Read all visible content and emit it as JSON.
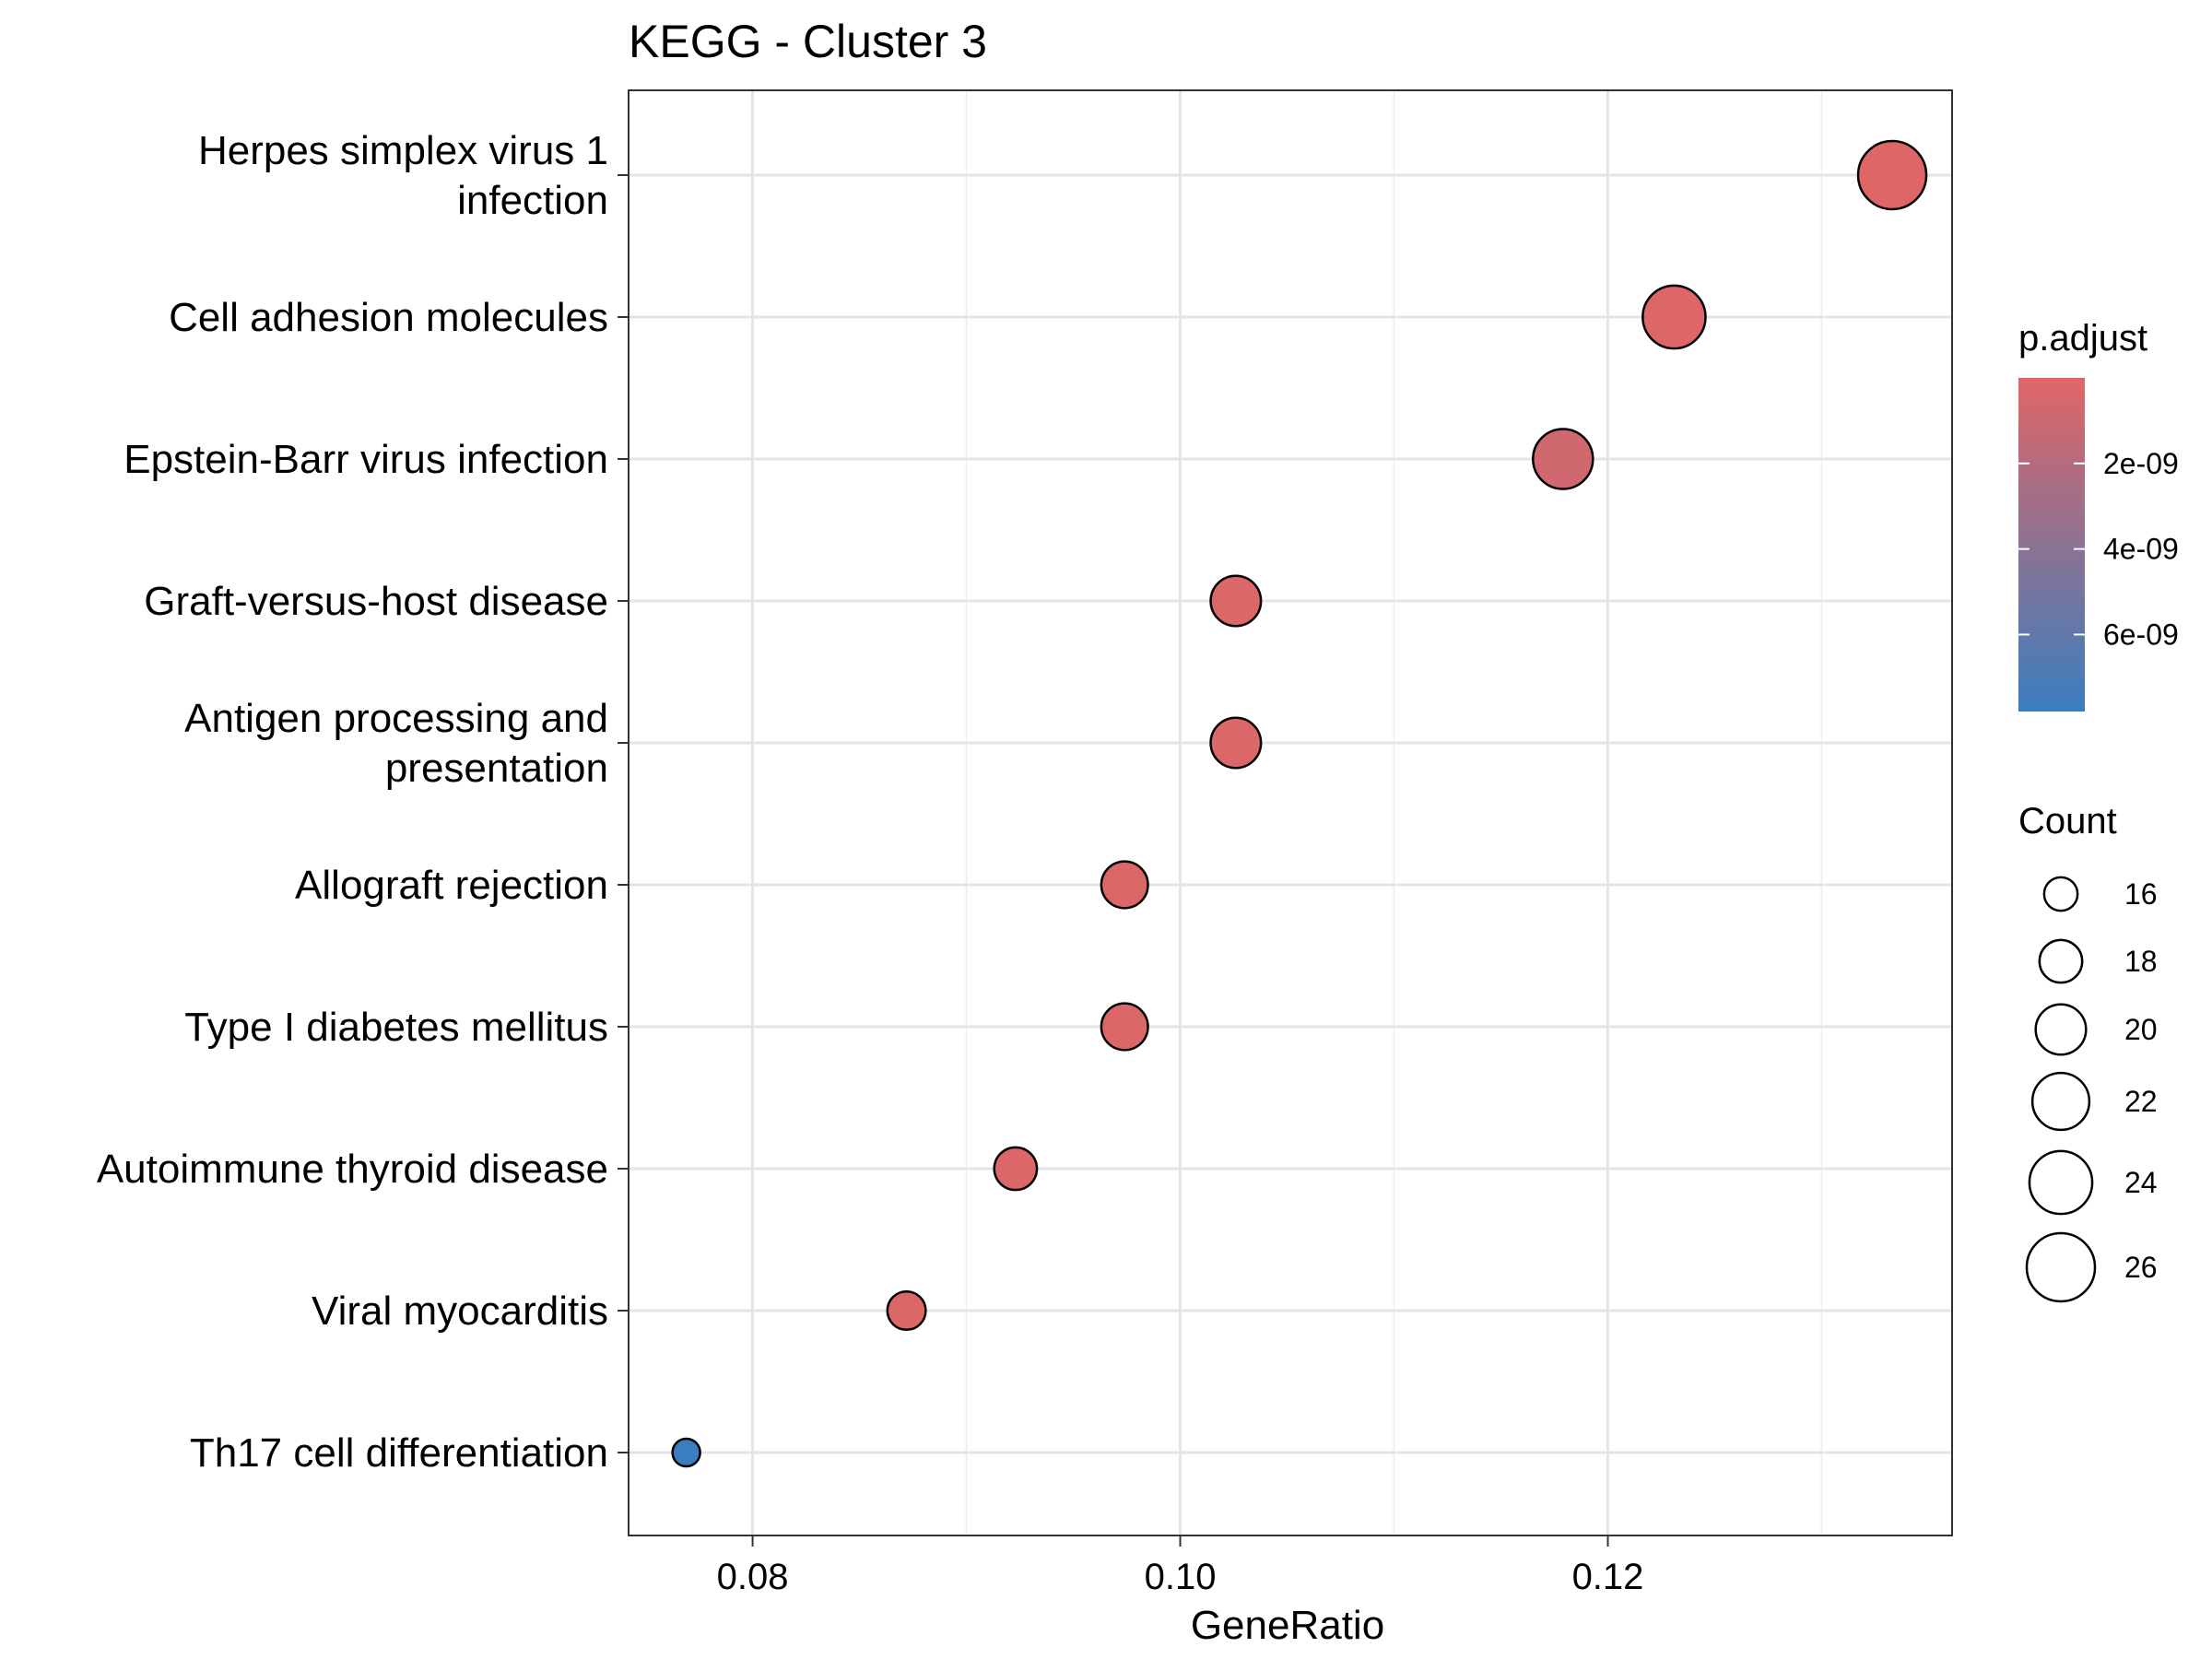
{
  "chart_data": {
    "type": "scatter",
    "title": "KEGG - Cluster 3",
    "xlabel": "GeneRatio",
    "ylabel": "",
    "xlim": [
      0.0742,
      0.1361
    ],
    "x_ticks": [
      0.08,
      0.1,
      0.12
    ],
    "x_tick_labels": [
      "0.08",
      "0.10",
      "0.12"
    ],
    "grid": true,
    "categories": [
      "Herpes simplex virus 1 infection",
      "Cell adhesion molecules",
      "Epstein-Barr virus infection",
      "Graft-versus-host disease",
      "Antigen processing and presentation",
      "Allograft rejection",
      "Type I diabetes mellitus",
      "Autoimmune thyroid disease",
      "Viral myocarditis",
      "Th17 cell differentiation"
    ],
    "category_lines": [
      [
        "Herpes simplex virus 1",
        "infection"
      ],
      [
        "Cell adhesion molecules"
      ],
      [
        "Epstein-Barr virus infection"
      ],
      [
        "Graft-versus-host disease"
      ],
      [
        "Antigen processing and",
        "presentation"
      ],
      [
        "Allograft rejection"
      ],
      [
        "Type I diabetes mellitus"
      ],
      [
        "Autoimmune thyroid disease"
      ],
      [
        "Viral myocarditis"
      ],
      [
        "Th17 cell differentiation"
      ]
    ],
    "points": [
      {
        "category": "Herpes simplex virus 1 infection",
        "x": 0.1333,
        "count": 26,
        "p_adjust": 1e-10
      },
      {
        "category": "Cell adhesion molecules",
        "x": 0.1231,
        "count": 24,
        "p_adjust": 1.5e-10
      },
      {
        "category": "Epstein-Barr virus infection",
        "x": 0.1179,
        "count": 23,
        "p_adjust": 8e-10
      },
      {
        "category": "Graft-versus-host disease",
        "x": 0.1026,
        "count": 20,
        "p_adjust": 2e-10
      },
      {
        "category": "Antigen processing and presentation",
        "x": 0.1026,
        "count": 20,
        "p_adjust": 2e-10
      },
      {
        "category": "Allograft rejection",
        "x": 0.0974,
        "count": 19,
        "p_adjust": 2e-10
      },
      {
        "category": "Type I diabetes mellitus",
        "x": 0.0974,
        "count": 19,
        "p_adjust": 2e-10
      },
      {
        "category": "Autoimmune thyroid disease",
        "x": 0.0923,
        "count": 18,
        "p_adjust": 2e-10
      },
      {
        "category": "Viral myocarditis",
        "x": 0.0872,
        "count": 17,
        "p_adjust": 2e-10
      },
      {
        "category": "Th17 cell differentiation",
        "x": 0.0769,
        "count": 15,
        "p_adjust": 7.8e-09
      }
    ],
    "legend_placement": "right",
    "color_legend": {
      "title": "p.adjust",
      "range": [
        0,
        7.8e-09
      ],
      "low_color": "#E06666",
      "high_color": "#3A7EBF",
      "ticks": [
        2e-09,
        4e-09,
        6e-09
      ],
      "tick_labels": [
        "2e-09",
        "4e-09",
        "6e-09"
      ]
    },
    "size_legend": {
      "title": "Count",
      "values": [
        16,
        18,
        20,
        22,
        24,
        26
      ],
      "labels": [
        "16",
        "18",
        "20",
        "22",
        "24",
        "26"
      ]
    }
  }
}
